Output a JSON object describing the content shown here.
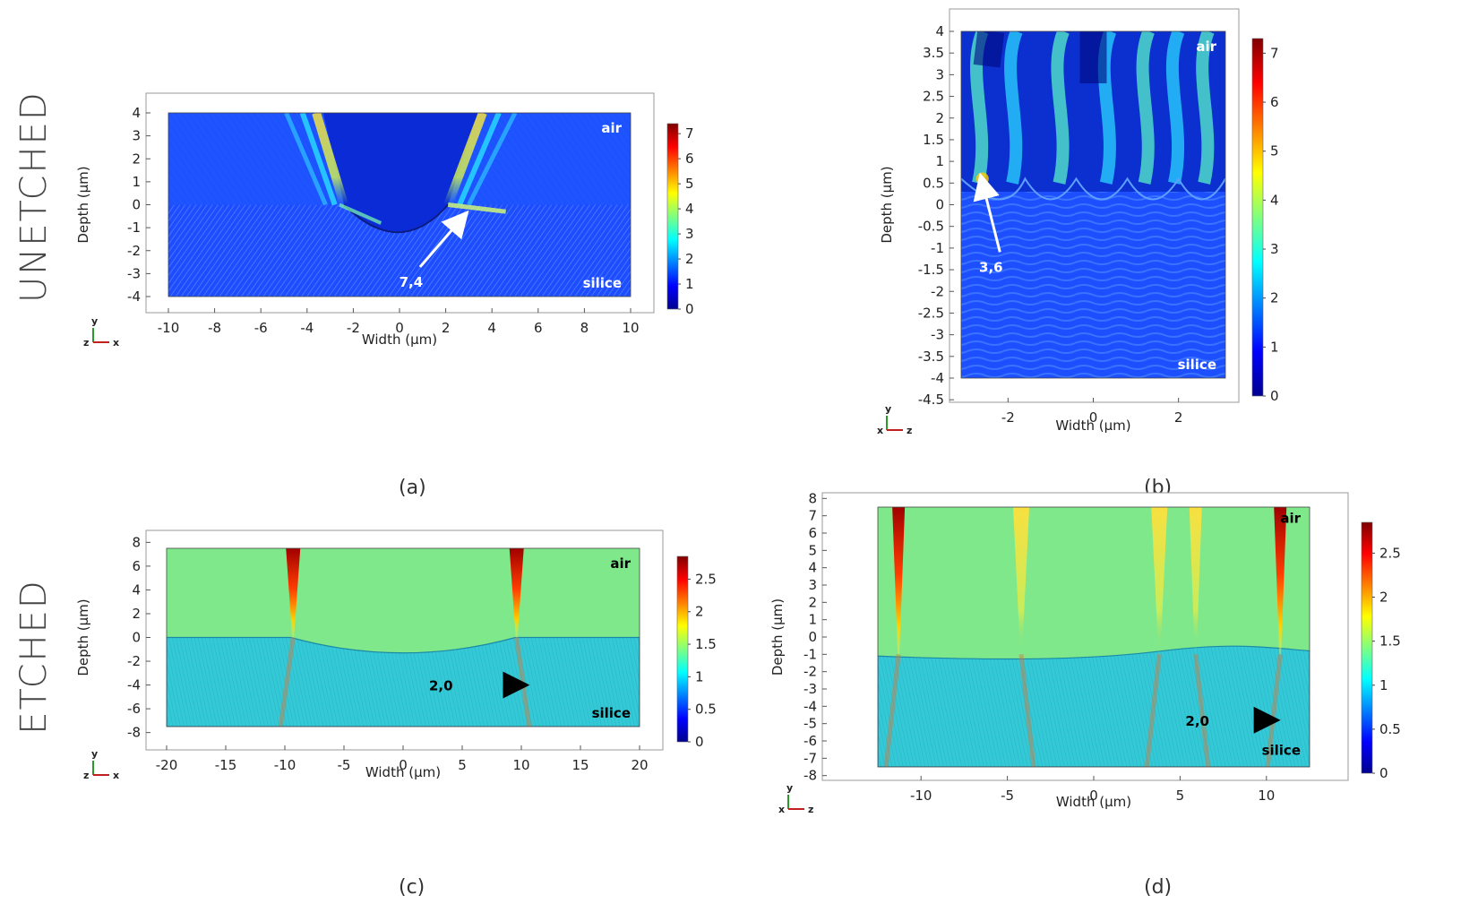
{
  "row_labels": {
    "top": "UNETCHED",
    "bottom": "ETCHED"
  },
  "panel_letters": [
    "(a)",
    "(b)",
    "(c)",
    "(d)"
  ],
  "chart_data": [
    {
      "id": "a",
      "type": "heatmap",
      "xlabel": "Width (µm)",
      "ylabel": "Depth (µm)",
      "xlim": [
        -10,
        10
      ],
      "ylim": [
        -4,
        4
      ],
      "xticks": [
        -10,
        -8,
        -6,
        -4,
        -2,
        0,
        2,
        4,
        6,
        8,
        10
      ],
      "yticks": [
        -4,
        -3,
        -2,
        -1,
        0,
        1,
        2,
        3,
        4
      ],
      "colorbar": {
        "min": 0,
        "max": 7.4,
        "ticks": [
          0,
          1,
          2,
          3,
          4,
          5,
          6,
          7
        ]
      },
      "regions": {
        "upper": "air",
        "lower": "silice"
      },
      "annotation": {
        "text": "7,4",
        "color": "#ffffff",
        "from": [
          0.5,
          -3.1
        ],
        "to": [
          2.7,
          -0.6
        ]
      },
      "axes_icon": {
        "vertical": "y",
        "horizontal": "x",
        "out": "z"
      }
    },
    {
      "id": "b",
      "type": "heatmap",
      "xlabel": "Width (µm)",
      "ylabel": "Depth (µm)",
      "xlim": [
        -3.1,
        3.1
      ],
      "ylim": [
        -4,
        4
      ],
      "xticks": [
        -2,
        0,
        2
      ],
      "yticks": [
        -4.5,
        -4,
        -3.5,
        -3,
        -2.5,
        -2,
        -1.5,
        -1,
        -0.5,
        0,
        0.5,
        1,
        1.5,
        2,
        2.5,
        3,
        3.5,
        4
      ],
      "colorbar": {
        "min": 0,
        "max": 7.3,
        "ticks": [
          0,
          1,
          2,
          3,
          4,
          5,
          6,
          7
        ]
      },
      "regions": {
        "upper": "air",
        "lower": "silice"
      },
      "annotation": {
        "text": "3,6",
        "color": "#ffffff",
        "from": [
          -2.4,
          -1.3
        ],
        "to": [
          -2.6,
          0.5
        ]
      },
      "axes_icon": {
        "vertical": "y",
        "horizontal": "z",
        "out": "x"
      }
    },
    {
      "id": "c",
      "type": "heatmap",
      "xlabel": "Width (µm)",
      "ylabel": "Depth (µm)",
      "xlim": [
        -20,
        20
      ],
      "ylim": [
        -7.5,
        7.5
      ],
      "xticks": [
        -20,
        -15,
        -10,
        -5,
        0,
        5,
        10,
        15,
        20
      ],
      "yticks": [
        -8,
        -6,
        -4,
        -2,
        0,
        2,
        4,
        6,
        8
      ],
      "colorbar": {
        "min": 0,
        "max": 2.85,
        "ticks": [
          0,
          0.5,
          1,
          1.5,
          2,
          2.5
        ]
      },
      "regions": {
        "upper": "air",
        "lower": "silice"
      },
      "annotation": {
        "text": "2,0",
        "color": "#000000",
        "from": [
          3.2,
          -4
        ],
        "to": [
          9.8,
          -4
        ]
      },
      "axes_icon": {
        "vertical": "y",
        "horizontal": "x",
        "out": "z"
      }
    },
    {
      "id": "d",
      "type": "heatmap",
      "xlabel": "Width (µm)",
      "ylabel": "Depth (µm)",
      "xlim": [
        -12.5,
        12.5
      ],
      "ylim": [
        -7.5,
        7.5
      ],
      "xticks": [
        -10,
        -5,
        0,
        5,
        10
      ],
      "yticks": [
        -8,
        -7,
        -6,
        -5,
        -4,
        -3,
        -2,
        -1,
        0,
        1,
        2,
        3,
        4,
        5,
        6,
        7,
        8
      ],
      "colorbar": {
        "min": 0,
        "max": 2.85,
        "ticks": [
          0,
          0.5,
          1,
          1.5,
          2,
          2.5
        ]
      },
      "regions": {
        "upper": "air",
        "lower": "silice"
      },
      "annotation": {
        "text": "2,0",
        "color": "#000000",
        "from": [
          6.0,
          -4.8
        ],
        "to": [
          10.2,
          -4.8
        ]
      },
      "axes_icon": {
        "vertical": "y",
        "horizontal": "z",
        "out": "x"
      }
    }
  ]
}
